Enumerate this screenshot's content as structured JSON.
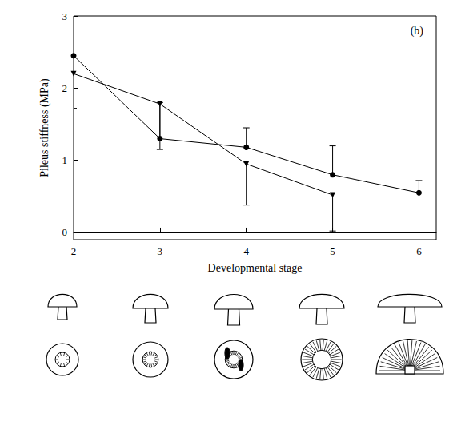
{
  "chart_data": {
    "type": "line",
    "title": "(b)",
    "x_label": "Developmental stage",
    "y_label": "Pileus stiffness (MPa)",
    "x": [
      2,
      3,
      4,
      5,
      6
    ],
    "xlim": [
      2,
      6.2
    ],
    "xticks": [
      2,
      3,
      4,
      5,
      6
    ],
    "ylim": [
      -0.1,
      3
    ],
    "yticks": [
      0,
      1,
      2,
      3
    ],
    "grid": false,
    "series": [
      {
        "color": "#000000",
        "marker": "circle",
        "line_style": "solid",
        "values": [
          2.45,
          1.3,
          1.18,
          0.8,
          0.55
        ],
        "errors_upper": [
          0.55,
          0.5,
          0.27,
          0.4,
          0.17
        ]
      },
      {
        "color": "#000000",
        "marker": "triangle_down",
        "line_style": "solid",
        "values": [
          2.2,
          1.78,
          0.95,
          0.52,
          null
        ],
        "errors_lower": [
          0.48,
          0.63,
          0.57,
          0.5,
          null
        ]
      }
    ]
  }
}
